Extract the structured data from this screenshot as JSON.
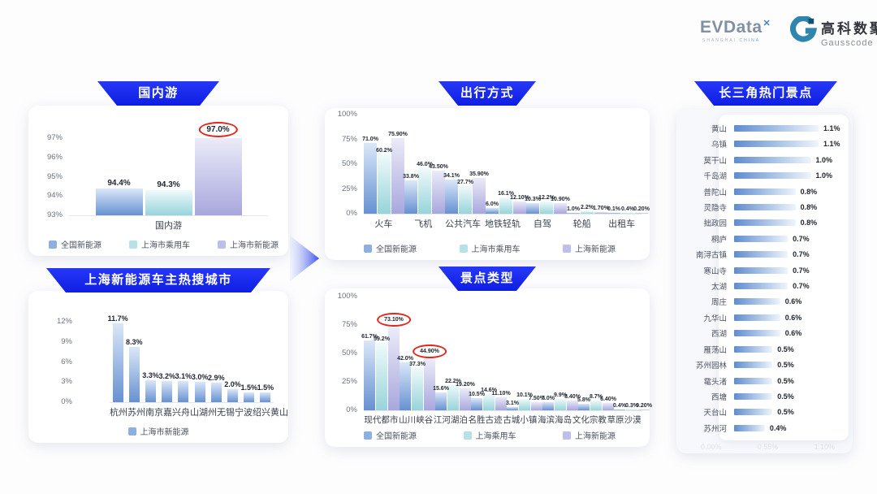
{
  "header": {
    "evdata": {
      "wordmark": "EVData",
      "mark": "✕",
      "sub1": "SHANGHAI",
      "sub2": "CHINA"
    },
    "gausscode": {
      "cn": "高科数聚",
      "en": "Gausscode"
    }
  },
  "colors": {
    "banner_top": "#2638f7",
    "banner_bottom": "#0f1ee3",
    "highlight_red": "#e0281e",
    "series": {
      "national": {
        "swatch": "#8db0e0",
        "top": "#dbe7f8",
        "bottom": "#6691d1"
      },
      "pv": {
        "swatch": "#b5e2e6",
        "top": "#f0fafb",
        "bottom": "#96d4da"
      },
      "ev": {
        "swatch": "#bfbdeb",
        "top": "#ebebf9",
        "bottom": "#a8a7dd"
      }
    },
    "hbar_left": "#5f8ccf",
    "hbar_right": "#eef5fc"
  },
  "chart_data": [
    {
      "id": "domestic",
      "type": "bar",
      "title": "国内游",
      "categories": [
        "国内游"
      ],
      "ylim": [
        93,
        97
      ],
      "yticks": [
        "93%",
        "94%",
        "95%",
        "96%",
        "97%"
      ],
      "grid": false,
      "legend_position": "bottom",
      "series": [
        {
          "name": "全国新能源",
          "color": "national",
          "values": [
            94.4
          ],
          "labels": [
            "94.4%"
          ]
        },
        {
          "name": "上海市乘用车",
          "color": "pv",
          "values": [
            94.3
          ],
          "labels": [
            "94.3%"
          ]
        },
        {
          "name": "上海市新能源",
          "color": "ev",
          "values": [
            97.0
          ],
          "labels": [
            "97.0%"
          ],
          "circled": [
            0
          ]
        }
      ]
    },
    {
      "id": "hot_cities",
      "type": "bar",
      "title": "上海新能源车主热搜城市",
      "categories": [
        "杭州",
        "苏州",
        "南京",
        "嘉兴",
        "舟山",
        "湖州",
        "无锡",
        "宁波",
        "绍兴",
        "黄山"
      ],
      "ylim": [
        0,
        12
      ],
      "yticks": [
        "0%",
        "3%",
        "6%",
        "9%",
        "12%"
      ],
      "grid": false,
      "legend_position": "bottom",
      "series": [
        {
          "name": "上海市新能源",
          "color": "national",
          "values": [
            11.7,
            8.3,
            3.3,
            3.2,
            3.1,
            3.0,
            2.9,
            2.0,
            1.5,
            1.5
          ],
          "labels": [
            "11.7%",
            "8.3%",
            "3.3%",
            "3.2%",
            "3.1%",
            "3.0%",
            "2.9%",
            "2.0%",
            "1.5%",
            "1.5%"
          ]
        }
      ]
    },
    {
      "id": "travel_modes",
      "type": "grouped_bar",
      "title": "出行方式",
      "categories": [
        "火车",
        "飞机",
        "公共汽车",
        "地铁轻轨",
        "自驾",
        "轮船",
        "出租车"
      ],
      "ylim": [
        0,
        100
      ],
      "yticks": [
        "0%",
        "25%",
        "50%",
        "75%",
        "100%"
      ],
      "grid": false,
      "legend_position": "bottom",
      "series": [
        {
          "name": "全国新能源",
          "color": "national",
          "values": [
            71.0,
            33.8,
            34.1,
            6.0,
            10.3,
            1.0,
            0.1
          ],
          "labels": [
            "71.0%",
            "33.8%",
            "34.1%",
            "6.0%",
            "10.3%",
            "1.0%",
            "0.1%"
          ]
        },
        {
          "name": "上海市乘用车",
          "color": "pv",
          "values": [
            60.2,
            46.0,
            27.7,
            16.1,
            12.2,
            2.2,
            0.4
          ],
          "labels": [
            "60.2%",
            "46.0%",
            "27.7%",
            "16.1%",
            "12.2%",
            "2.2%",
            "0.4%"
          ]
        },
        {
          "name": "上海新能源",
          "color": "ev",
          "values": [
            75.9,
            43.5,
            35.9,
            12.1,
            10.9,
            1.7,
            0.2
          ],
          "labels": [
            "75.90%",
            "43.50%",
            "35.90%",
            "12.10%",
            "10.90%",
            "1.70%",
            "0.20%"
          ]
        }
      ]
    },
    {
      "id": "attraction_types",
      "type": "grouped_bar",
      "title": "景点类型",
      "categories": [
        "现代都市",
        "山川峡谷",
        "江河湖泊",
        "名胜古迹",
        "古城小镇",
        "海滨海岛",
        "文化宗教",
        "草原沙漠"
      ],
      "ylim": [
        0,
        100
      ],
      "yticks": [
        "0%",
        "25%",
        "50%",
        "75%",
        "100%"
      ],
      "grid": false,
      "legend_position": "bottom",
      "series": [
        {
          "name": "全国新能源",
          "color": "national",
          "values": [
            61.7,
            42.0,
            15.6,
            10.5,
            3.1,
            7.0,
            5.8,
            0.4
          ],
          "labels": [
            "61.7%",
            "42.0%",
            "15.6%",
            "10.5%",
            "3.1%",
            "7.0%",
            "5.8%",
            "0.4%"
          ]
        },
        {
          "name": "上海乘用车",
          "color": "pv",
          "values": [
            59.2,
            37.3,
            22.2,
            14.6,
            10.1,
            9.9,
            8.7,
            0.3
          ],
          "labels": [
            "59.2%",
            "37.3%",
            "22.2%",
            "14.6%",
            "10.1%",
            "9.9%",
            "8.7%",
            "0.3%"
          ]
        },
        {
          "name": "上海新能源",
          "color": "ev",
          "values": [
            73.1,
            44.9,
            19.2,
            11.1,
            7.5,
            8.4,
            6.4,
            0.2
          ],
          "labels": [
            "73.10%",
            "44.90%",
            "19.20%",
            "11.10%",
            "7.50%",
            "8.40%",
            "6.40%",
            "0.20%"
          ],
          "circled": [
            0,
            1
          ]
        }
      ]
    },
    {
      "id": "delta_attractions",
      "type": "hbar",
      "title": "长三角热门景点",
      "categories": [
        "黄山",
        "乌镇",
        "莫干山",
        "千岛湖",
        "普陀山",
        "灵隐寺",
        "拙政园",
        "桐庐",
        "南浔古镇",
        "寒山寺",
        "太湖",
        "周庄",
        "九华山",
        "西湖",
        "雁荡山",
        "苏州园林",
        "鼋头渚",
        "西塘",
        "天台山",
        "苏州河"
      ],
      "values": [
        1.1,
        1.1,
        1.0,
        1.0,
        0.8,
        0.8,
        0.8,
        0.7,
        0.7,
        0.7,
        0.7,
        0.6,
        0.6,
        0.6,
        0.5,
        0.5,
        0.5,
        0.5,
        0.5,
        0.4
      ],
      "labels": [
        "1.1%",
        "1.1%",
        "1.0%",
        "1.0%",
        "0.8%",
        "0.8%",
        "0.8%",
        "0.7%",
        "0.7%",
        "0.7%",
        "0.7%",
        "0.6%",
        "0.6%",
        "0.6%",
        "0.5%",
        "0.5%",
        "0.5%",
        "0.5%",
        "0.5%",
        "0.4%"
      ],
      "xlim": [
        0,
        1.1
      ],
      "xticks_faint": [
        "0.00%",
        "0.55%",
        "1.10%"
      ],
      "grid": false
    }
  ]
}
